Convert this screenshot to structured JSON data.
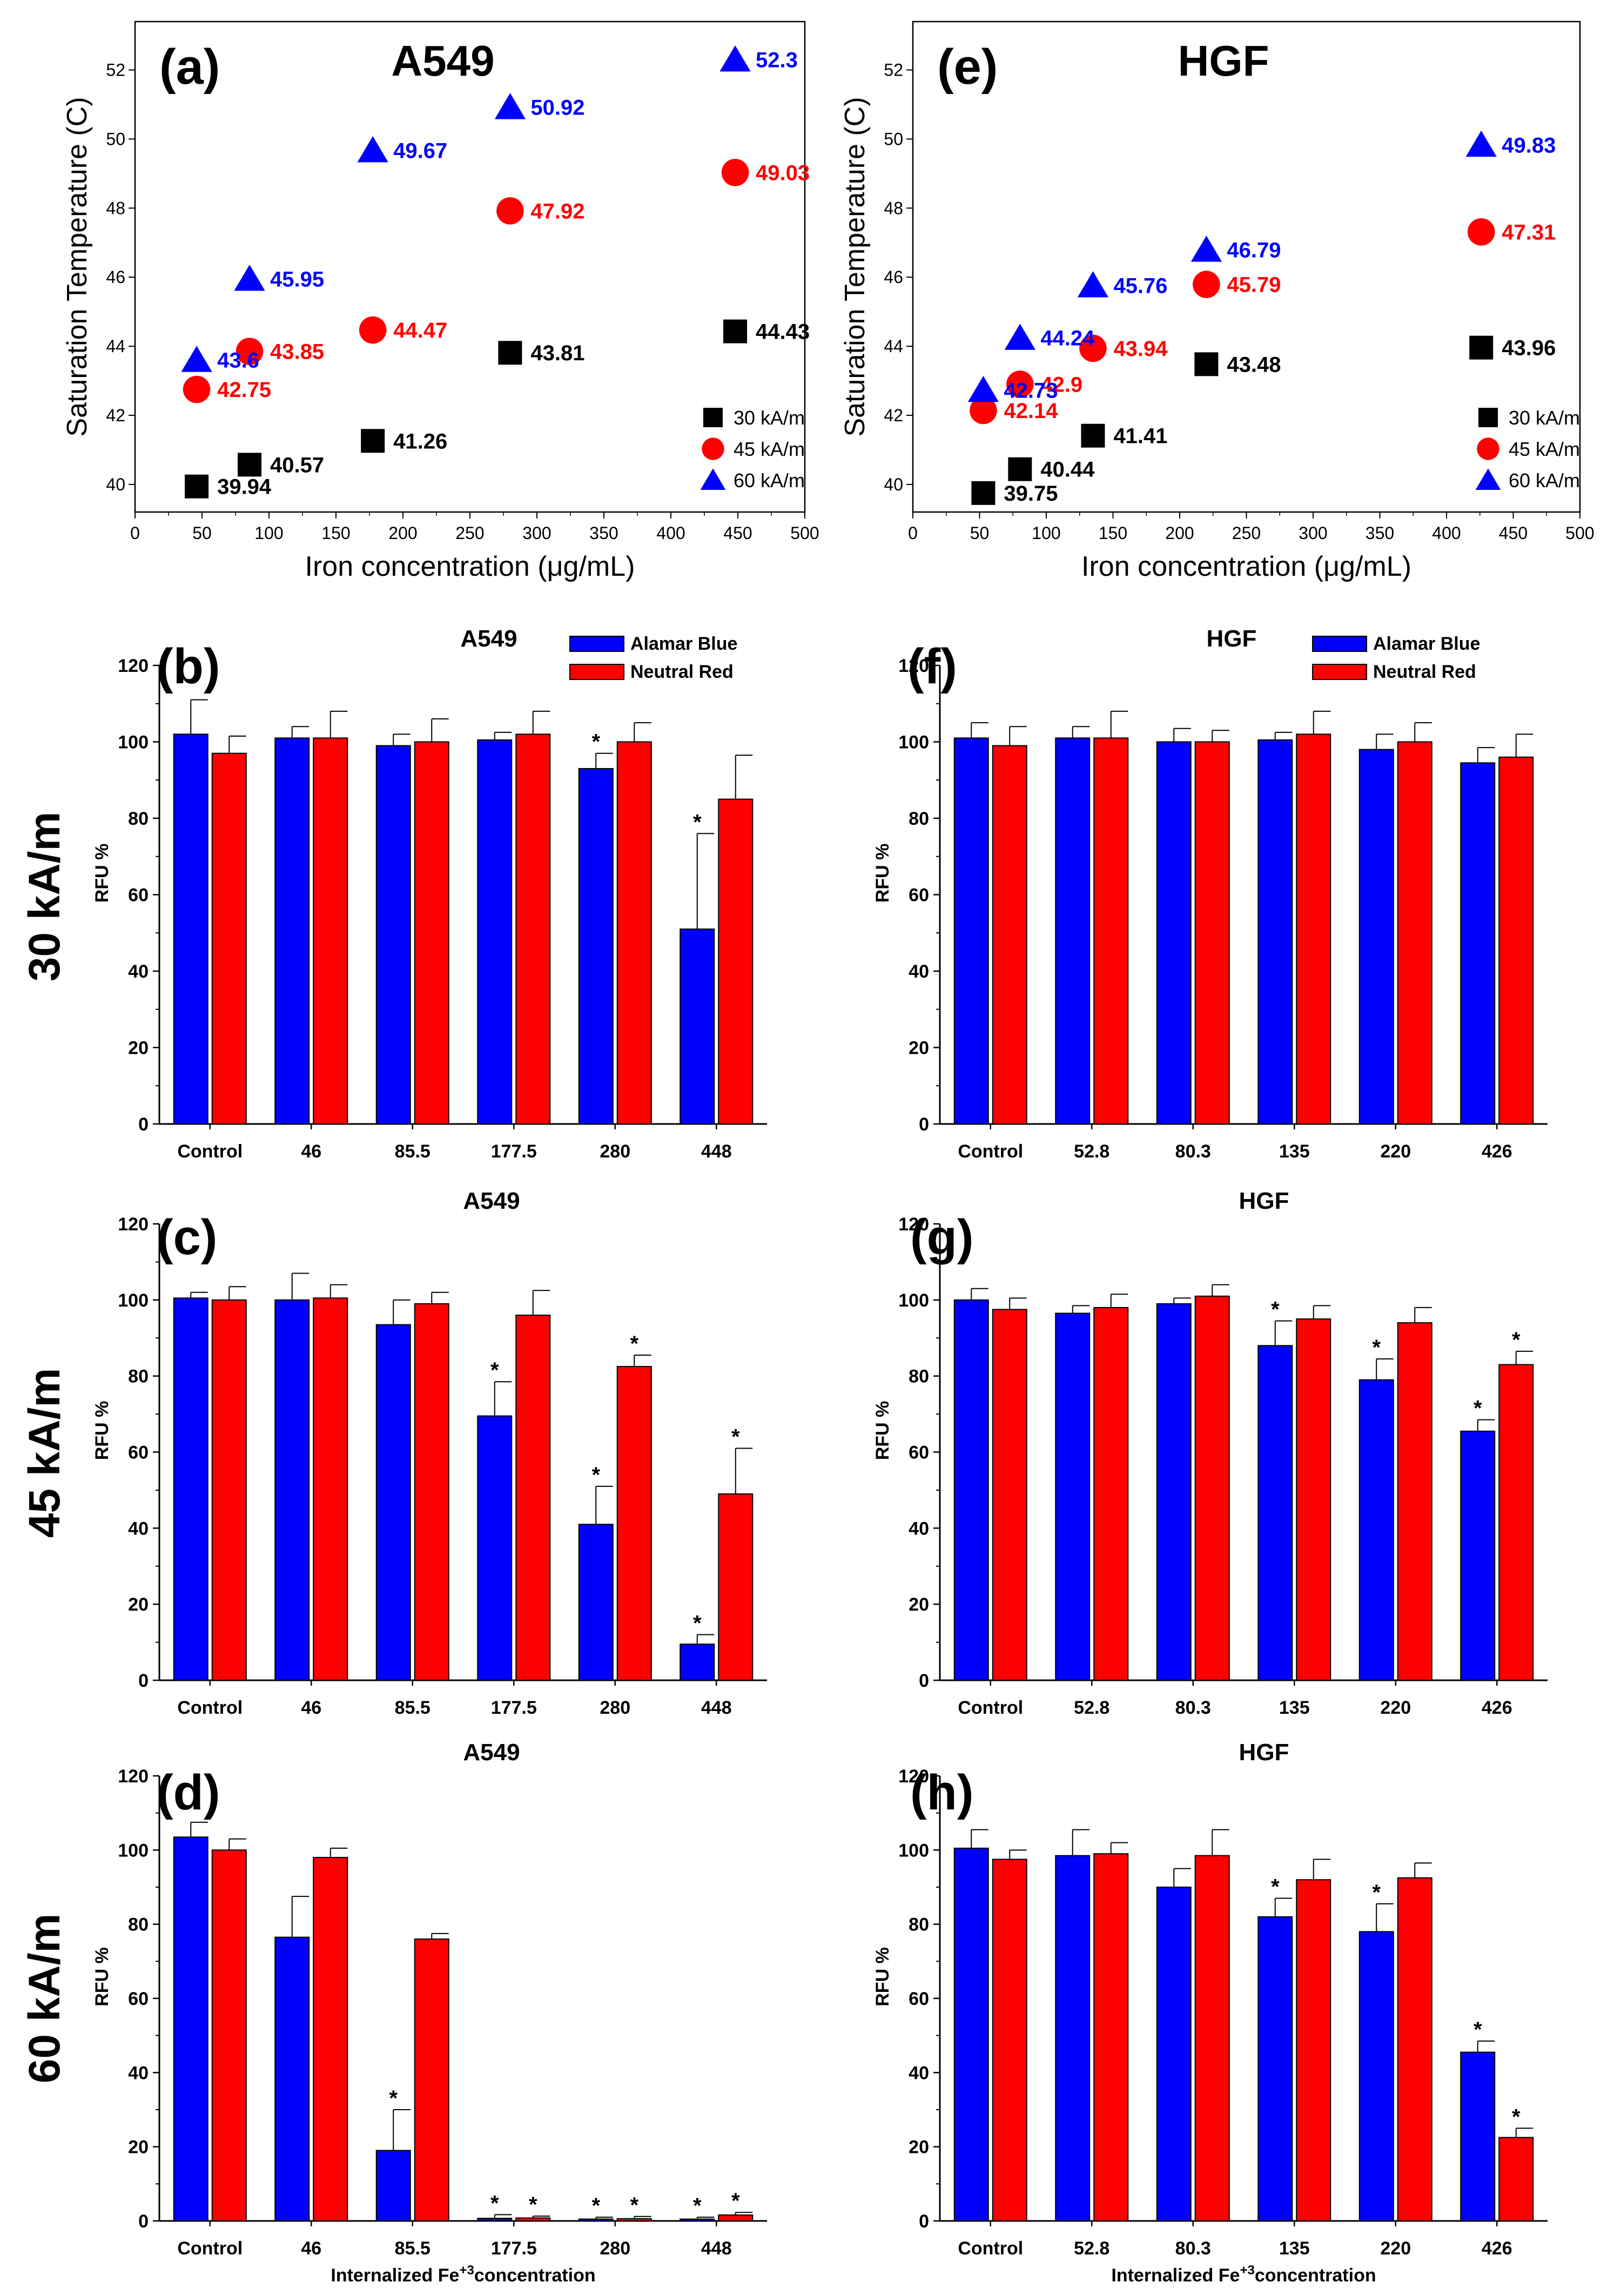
{
  "colors": {
    "blue": "#0000ff",
    "red": "#ff0000",
    "black": "#000000"
  },
  "row_labels": [
    "30 kA/m",
    "45 kA/m",
    "60 kA/m"
  ],
  "chart_data": [
    {
      "id": "a",
      "type": "scatter",
      "letter": "(a)",
      "title": "A549",
      "xlabel": "Iron concentration (μg/mL)",
      "ylabel": "Saturation Temperature (C)",
      "xlim": [
        0,
        500
      ],
      "ylim": [
        39.2,
        53.4
      ],
      "xticks": [
        0,
        50,
        100,
        150,
        200,
        250,
        300,
        350,
        400,
        450,
        500
      ],
      "yticks": [
        40,
        42,
        44,
        46,
        48,
        50,
        52
      ],
      "legend_position": "bottom-right",
      "series": [
        {
          "name": "30 kA/m",
          "marker": "square",
          "color": "#000000",
          "x": [
            46,
            85.5,
            177.5,
            280,
            448
          ],
          "y": [
            39.94,
            40.57,
            41.26,
            43.81,
            44.43
          ],
          "labels": [
            "39.94",
            "40.57",
            "41.26",
            "43.81",
            "44.43"
          ]
        },
        {
          "name": "45 kA/m",
          "marker": "circle",
          "color": "#ff0000",
          "x": [
            46,
            85.5,
            177.5,
            280,
            448
          ],
          "y": [
            42.75,
            43.85,
            44.47,
            47.92,
            49.03
          ],
          "labels": [
            "42.75",
            "43.85",
            "44.47",
            "47.92",
            "49.03"
          ]
        },
        {
          "name": "60 kA/m",
          "marker": "triangle",
          "color": "#0000ff",
          "x": [
            46,
            85.5,
            177.5,
            280,
            448
          ],
          "y": [
            43.6,
            45.95,
            49.67,
            50.92,
            52.3
          ],
          "labels": [
            "43.6",
            "45.95",
            "49.67",
            "50.92",
            "52.3"
          ]
        }
      ]
    },
    {
      "id": "e",
      "type": "scatter",
      "letter": "(e)",
      "title": "HGF",
      "xlabel": "Iron concentration (μg/mL)",
      "ylabel": "Saturation Temperature (C)",
      "xlim": [
        0,
        500
      ],
      "ylim": [
        39.2,
        53.4
      ],
      "xticks": [
        0,
        50,
        100,
        150,
        200,
        250,
        300,
        350,
        400,
        450,
        500
      ],
      "yticks": [
        40,
        42,
        44,
        46,
        48,
        50,
        52
      ],
      "legend_position": "bottom-right",
      "series": [
        {
          "name": "30 kA/m",
          "marker": "square",
          "color": "#000000",
          "x": [
            52.8,
            80.3,
            135,
            220,
            426
          ],
          "y": [
            39.75,
            40.44,
            41.41,
            43.48,
            43.96
          ],
          "labels": [
            "39.75",
            "40.44",
            "41.41",
            "43.48",
            "43.96"
          ]
        },
        {
          "name": "45 kA/m",
          "marker": "circle",
          "color": "#ff0000",
          "x": [
            52.8,
            80.3,
            135,
            220,
            426
          ],
          "y": [
            42.14,
            42.9,
            43.94,
            45.79,
            47.31
          ],
          "labels": [
            "42.14",
            "42.9",
            "43.94",
            "45.79",
            "47.31"
          ]
        },
        {
          "name": "60 kA/m",
          "marker": "triangle",
          "color": "#0000ff",
          "x": [
            52.8,
            80.3,
            135,
            220,
            426
          ],
          "y": [
            42.73,
            44.24,
            45.76,
            46.79,
            49.83
          ],
          "labels": [
            "42.73",
            "44.24",
            "45.76",
            "46.79",
            "49.83"
          ]
        }
      ]
    },
    {
      "id": "b",
      "type": "bar",
      "letter": "(b)",
      "title": "A549",
      "ylabel": "RFU %",
      "ylim": [
        0,
        120
      ],
      "yticks": [
        0,
        20,
        40,
        60,
        80,
        100,
        120
      ],
      "categories": [
        "Control",
        "46",
        "85.5",
        "177.5",
        "280",
        "448"
      ],
      "legend": [
        "Alamar Blue",
        "Neutral Red"
      ],
      "series": [
        {
          "name": "Alamar Blue",
          "color": "#0000ff",
          "values": [
            102,
            101,
            99,
            100.5,
            93,
            51
          ],
          "errors": [
            9,
            3,
            3,
            2,
            4,
            25
          ],
          "sig": [
            false,
            false,
            false,
            false,
            true,
            true
          ]
        },
        {
          "name": "Neutral Red",
          "color": "#ff0000",
          "values": [
            97,
            101,
            100,
            102,
            100,
            85
          ],
          "errors": [
            4.5,
            7,
            6,
            6,
            5,
            11.5
          ],
          "sig": [
            false,
            false,
            false,
            false,
            false,
            false
          ]
        }
      ]
    },
    {
      "id": "f",
      "type": "bar",
      "letter": "(f)",
      "title": "HGF",
      "ylabel": "RFU %",
      "ylim": [
        0,
        120
      ],
      "yticks": [
        0,
        20,
        40,
        60,
        80,
        100,
        120
      ],
      "categories": [
        "Control",
        "52.8",
        "80.3",
        "135",
        "220",
        "426"
      ],
      "legend": [
        "Alamar Blue",
        "Neutral Red"
      ],
      "series": [
        {
          "name": "Alamar Blue",
          "color": "#0000ff",
          "values": [
            101,
            101,
            100,
            100.5,
            98,
            94.5
          ],
          "errors": [
            4,
            3,
            3.5,
            2,
            4,
            4
          ],
          "sig": [
            false,
            false,
            false,
            false,
            false,
            false
          ]
        },
        {
          "name": "Neutral Red",
          "color": "#ff0000",
          "values": [
            99,
            101,
            100,
            102,
            100,
            96
          ],
          "errors": [
            5,
            7,
            3,
            6,
            5,
            6
          ],
          "sig": [
            false,
            false,
            false,
            false,
            false,
            false
          ]
        }
      ]
    },
    {
      "id": "c",
      "type": "bar",
      "letter": "(c)",
      "title": "A549",
      "ylabel": "RFU %",
      "ylim": [
        0,
        120
      ],
      "yticks": [
        0,
        20,
        40,
        60,
        80,
        100,
        120
      ],
      "categories": [
        "Control",
        "46",
        "85.5",
        "177.5",
        "280",
        "448"
      ],
      "series": [
        {
          "name": "Alamar Blue",
          "color": "#0000ff",
          "values": [
            100.5,
            100,
            93.5,
            69.5,
            41,
            9.5
          ],
          "errors": [
            1.5,
            7,
            6.5,
            9,
            10,
            2.5
          ],
          "sig": [
            false,
            false,
            false,
            true,
            true,
            true
          ]
        },
        {
          "name": "Neutral Red",
          "color": "#ff0000",
          "values": [
            100,
            100.5,
            99,
            96,
            82.5,
            49
          ],
          "errors": [
            3.5,
            3.5,
            3,
            6.5,
            3,
            12
          ],
          "sig": [
            false,
            false,
            false,
            false,
            true,
            true
          ]
        }
      ]
    },
    {
      "id": "g",
      "type": "bar",
      "letter": "(g)",
      "title": "HGF",
      "ylabel": "RFU %",
      "ylim": [
        0,
        120
      ],
      "yticks": [
        0,
        20,
        40,
        60,
        80,
        100,
        120
      ],
      "categories": [
        "Control",
        "52.8",
        "80.3",
        "135",
        "220",
        "426"
      ],
      "series": [
        {
          "name": "Alamar Blue",
          "color": "#0000ff",
          "values": [
            100,
            96.5,
            99,
            88,
            79,
            65.5
          ],
          "errors": [
            3,
            2,
            1.5,
            6.5,
            5.5,
            3
          ],
          "sig": [
            false,
            false,
            false,
            true,
            true,
            true
          ]
        },
        {
          "name": "Neutral Red",
          "color": "#ff0000",
          "values": [
            97.5,
            98,
            101,
            95,
            94,
            83
          ],
          "errors": [
            3,
            3.5,
            3,
            3.5,
            4,
            3.5
          ],
          "sig": [
            false,
            false,
            false,
            false,
            false,
            true
          ]
        }
      ]
    },
    {
      "id": "d",
      "type": "bar",
      "letter": "(d)",
      "title": "A549",
      "ylabel": "RFU %",
      "xlabel": "Internalized Fe+3concentration",
      "ylim": [
        0,
        120
      ],
      "yticks": [
        0,
        20,
        40,
        60,
        80,
        100,
        120
      ],
      "categories": [
        "Control",
        "46",
        "85.5",
        "177.5",
        "280",
        "448"
      ],
      "series": [
        {
          "name": "Alamar Blue",
          "color": "#0000ff",
          "values": [
            103.5,
            76.5,
            19,
            0.7,
            0.5,
            0.5
          ],
          "errors": [
            4,
            11,
            11,
            1,
            0.5,
            0.5
          ],
          "sig": [
            false,
            false,
            true,
            true,
            true,
            true
          ]
        },
        {
          "name": "Neutral Red",
          "color": "#ff0000",
          "values": [
            100,
            98,
            76,
            0.8,
            0.6,
            1.6
          ],
          "errors": [
            3,
            2.5,
            1.5,
            0.5,
            0.6,
            0.7
          ],
          "sig": [
            false,
            false,
            false,
            true,
            true,
            true
          ]
        }
      ]
    },
    {
      "id": "h",
      "type": "bar",
      "letter": "(h)",
      "title": "HGF",
      "ylabel": "RFU %",
      "xlabel": "Internalized Fe+3concentration",
      "ylim": [
        0,
        120
      ],
      "yticks": [
        0,
        20,
        40,
        60,
        80,
        100,
        120
      ],
      "categories": [
        "Control",
        "52.8",
        "80.3",
        "135",
        "220",
        "426"
      ],
      "series": [
        {
          "name": "Alamar Blue",
          "color": "#0000ff",
          "values": [
            100.5,
            98.5,
            90,
            82,
            78,
            45.5
          ],
          "errors": [
            5,
            7,
            5,
            5,
            7.5,
            3
          ],
          "sig": [
            false,
            false,
            false,
            true,
            true,
            true
          ]
        },
        {
          "name": "Neutral Red",
          "color": "#ff0000",
          "values": [
            97.5,
            99,
            98.5,
            92,
            92.5,
            22.5
          ],
          "errors": [
            2.5,
            3,
            7,
            5.5,
            4,
            2.5
          ],
          "sig": [
            false,
            false,
            false,
            false,
            false,
            true
          ]
        }
      ]
    }
  ]
}
